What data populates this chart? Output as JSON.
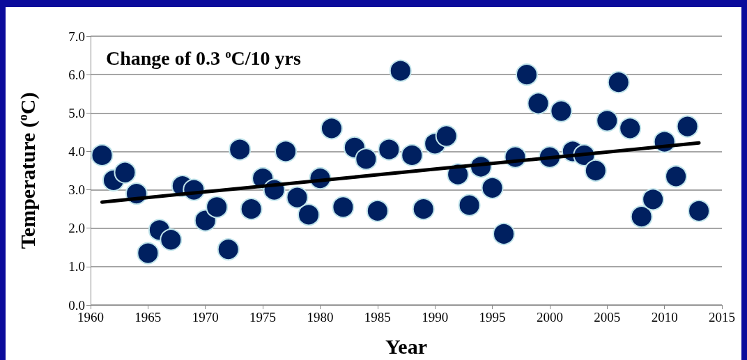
{
  "chart_data": {
    "type": "scatter",
    "title": "Change of 0.3 $^{o}$C/10 yrs",
    "xlabel": "Year",
    "ylabel": "Temperature ($^{o}$C)",
    "x": [
      1961,
      1962,
      1963,
      1964,
      1965,
      1966,
      1967,
      1968,
      1969,
      1970,
      1971,
      1972,
      1973,
      1974,
      1975,
      1976,
      1977,
      1978,
      1979,
      1980,
      1981,
      1982,
      1983,
      1984,
      1985,
      1986,
      1987,
      1988,
      1989,
      1990,
      1991,
      1992,
      1993,
      1994,
      1995,
      1996,
      1997,
      1998,
      1999,
      2000,
      2001,
      2002,
      2003,
      2004,
      2005,
      2006,
      2007,
      2008,
      2009,
      2010,
      2011,
      2012,
      2013
    ],
    "series": [
      {
        "color": "#002060",
        "marker": "circle",
        "values": [
          3.9,
          3.25,
          3.45,
          2.9,
          1.35,
          1.95,
          1.7,
          3.1,
          3.0,
          2.2,
          2.55,
          1.45,
          4.05,
          2.5,
          3.3,
          3.0,
          4.0,
          2.8,
          2.35,
          3.3,
          4.6,
          2.55,
          4.1,
          3.8,
          2.45,
          4.05,
          6.1,
          3.9,
          2.5,
          4.2,
          4.4,
          3.4,
          2.6,
          3.6,
          3.05,
          1.85,
          3.85,
          6.0,
          5.25,
          3.85,
          5.05,
          4.0,
          3.9,
          3.5,
          4.8,
          5.8,
          4.6,
          2.3,
          2.75,
          4.25,
          3.35,
          4.65,
          2.45
        ]
      },
      {
        "type": "line",
        "color": "#000000",
        "x": [
          1961,
          2013
        ],
        "values": [
          2.68,
          4.22
        ]
      }
    ],
    "xlim": [
      1960,
      2015
    ],
    "xticks": [
      1960,
      1965,
      1970,
      1975,
      1980,
      1985,
      1990,
      1995,
      2000,
      2005,
      2010,
      2015
    ],
    "ylim": [
      0,
      7
    ],
    "yticks": [
      {
        "value": 0,
        "label": "0.0"
      },
      {
        "value": 1,
        "label": "1.0"
      },
      {
        "value": 2,
        "label": "2.0"
      },
      {
        "value": 3,
        "label": "3.0"
      },
      {
        "value": 4,
        "label": "4.0"
      },
      {
        "value": 5,
        "label": "5.0"
      },
      {
        "value": 6,
        "label": "6.0"
      },
      {
        "value": 7,
        "label": "7.0"
      }
    ],
    "grid": "y"
  }
}
